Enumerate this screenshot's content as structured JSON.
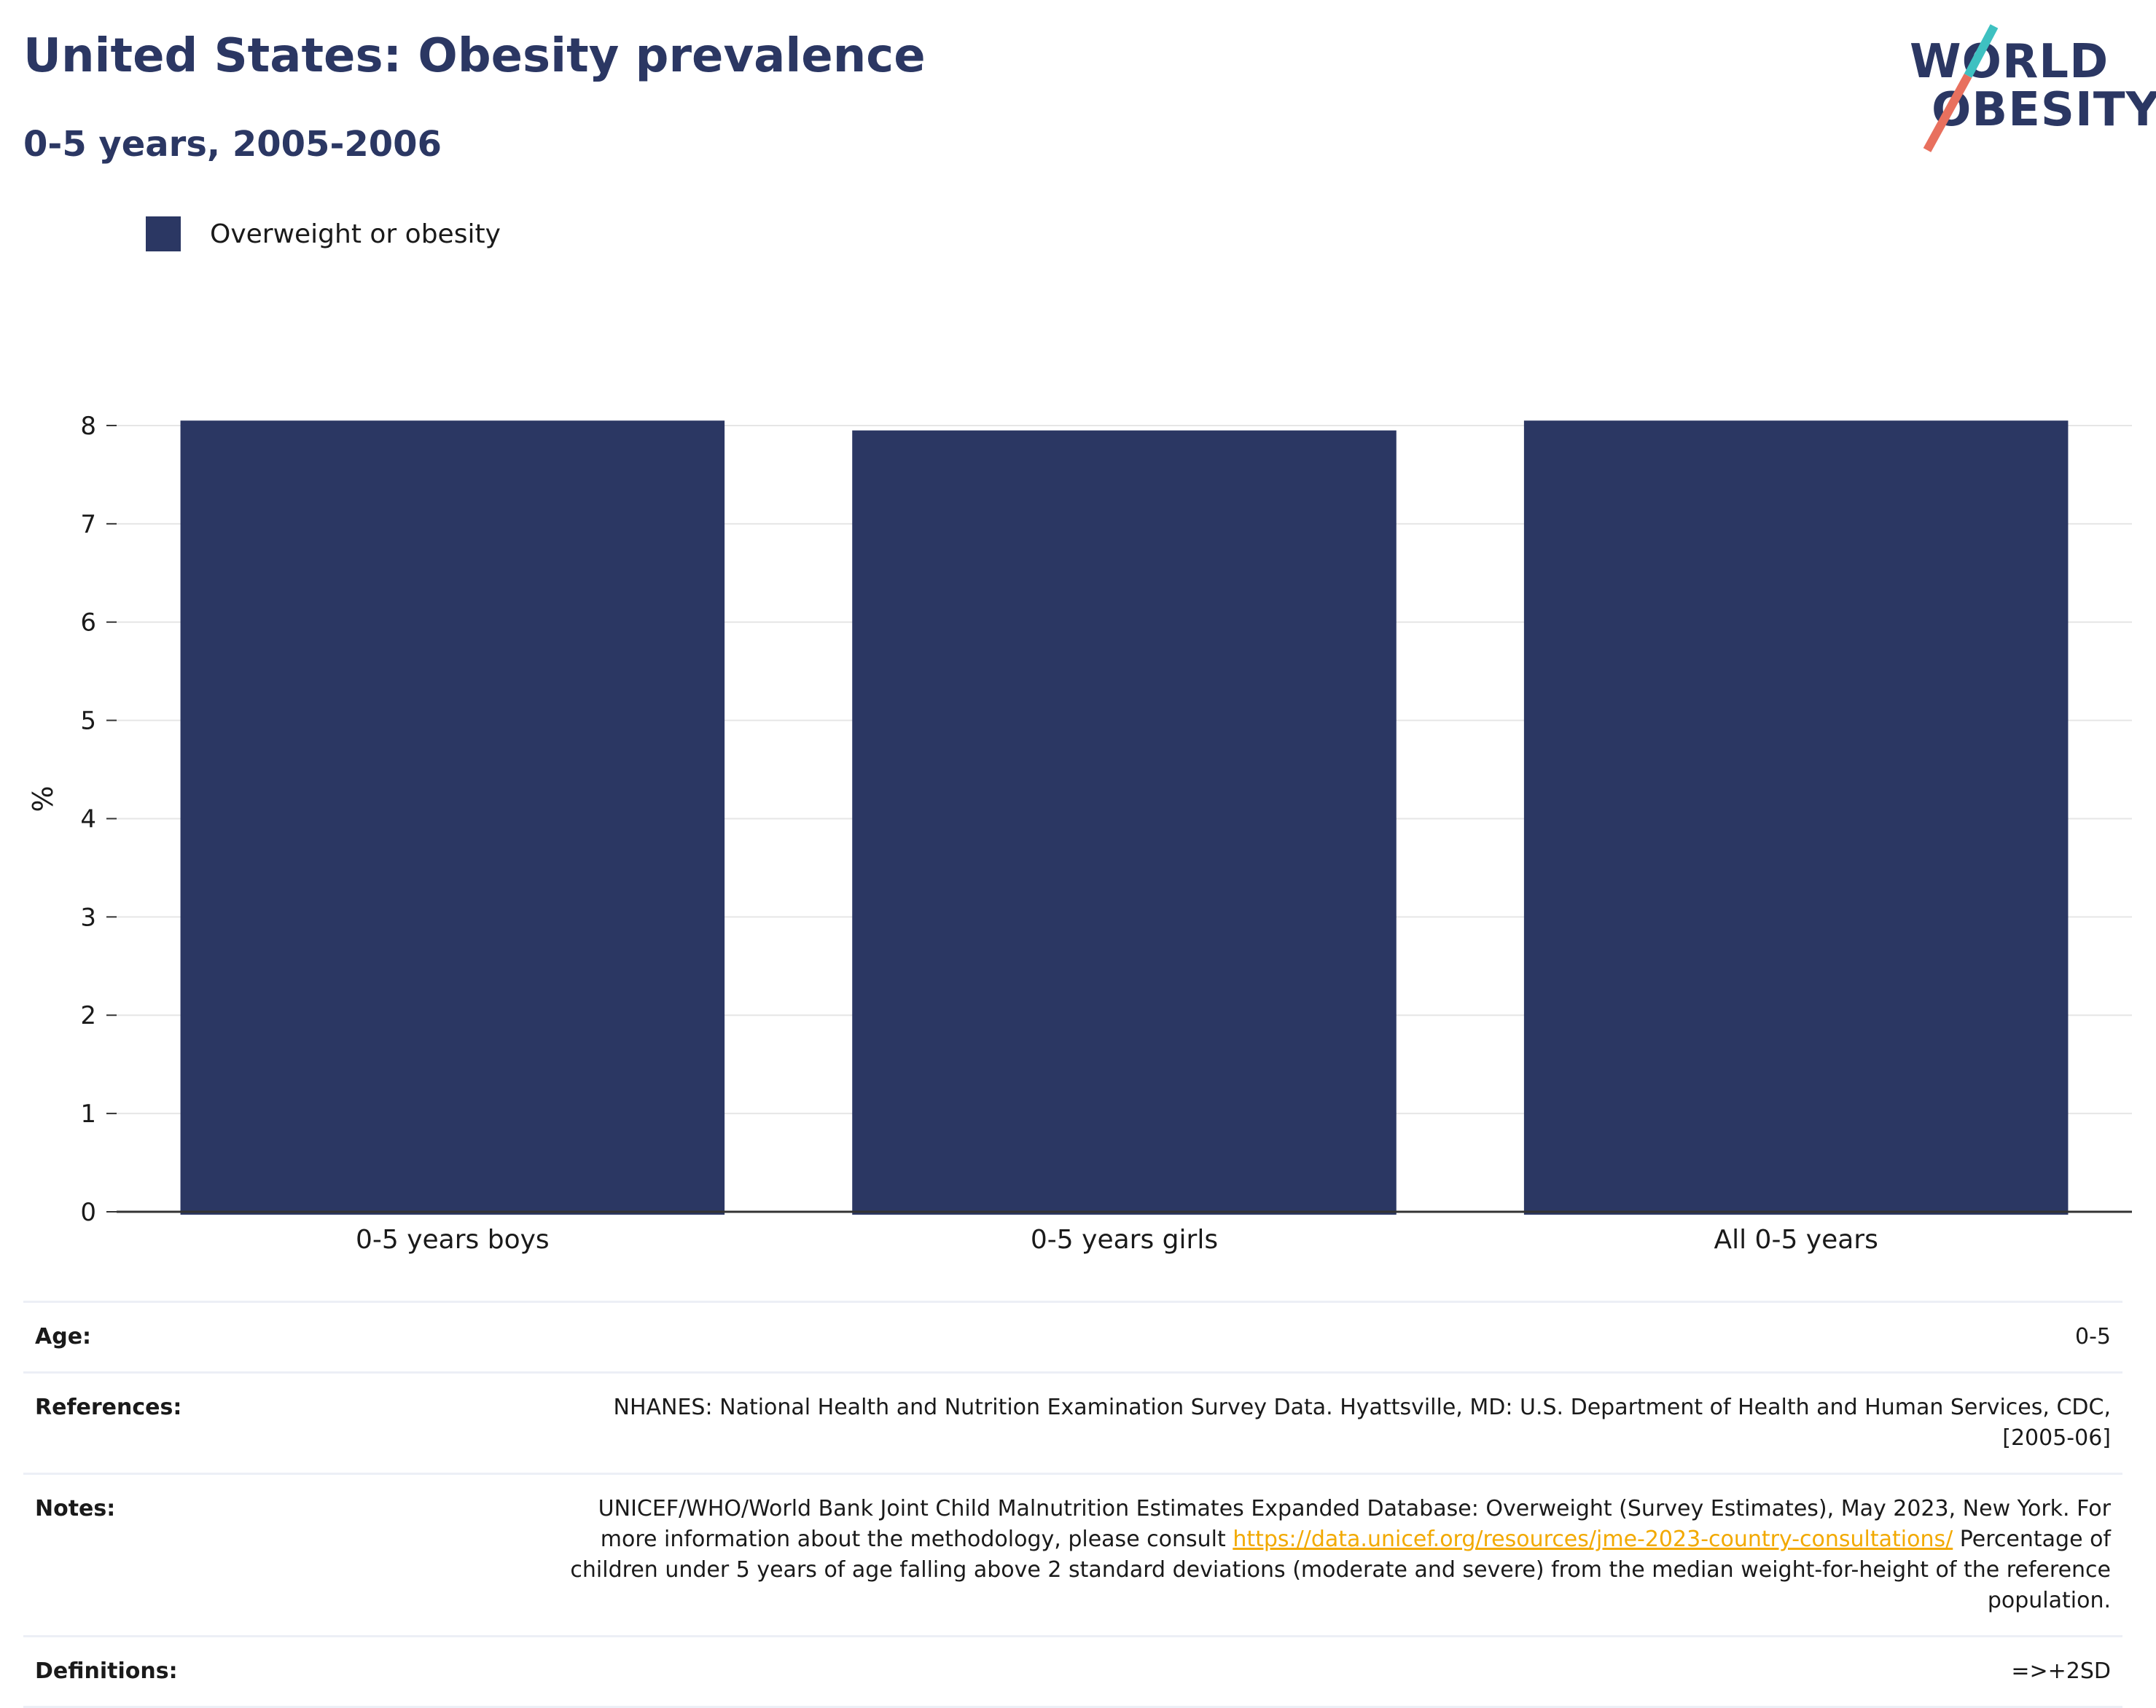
{
  "title": "United States: Obesity prevalence",
  "subtitle": "0-5 years, 2005-2006",
  "logo": {
    "line1": "WORLD",
    "line2": "OBESITY",
    "slash_colors": [
      "#3ec1c1",
      "#e8705e"
    ]
  },
  "colors": {
    "bar": "#2b3763",
    "title": "#2b3763",
    "grid": "#e6e6e6",
    "axis": "#333333",
    "link": "#f2a900"
  },
  "chart_data": {
    "type": "bar",
    "categories": [
      "0-5 years boys",
      "0-5 years girls",
      "All 0-5 years"
    ],
    "series": [
      {
        "name": "Overweight or obesity",
        "values": [
          8.05,
          7.95,
          8.05
        ]
      }
    ],
    "ylabel": "%",
    "xlabel": "",
    "ylim": [
      0,
      8.4
    ],
    "yticks": [
      0,
      1,
      2,
      3,
      4,
      5,
      6,
      7,
      8
    ],
    "grid": true,
    "legend_position": "top-left"
  },
  "meta": {
    "age": {
      "label": "Age:",
      "value": "0-5"
    },
    "references": {
      "label": "References:",
      "value": "NHANES: National Health and Nutrition Examination Survey Data. Hyattsville, MD: U.S. Department of Health and Human Services, CDC, [2005-06]"
    },
    "notes": {
      "label": "Notes:",
      "text_before": "UNICEF/WHO/World Bank Joint Child Malnutrition Estimates Expanded Database: Overweight (Survey Estimates), May 2023, New York. For more information about the methodology, please consult ",
      "link": "https://data.unicef.org/resources/jme-2023-country-consultations/",
      "text_after": " Percentage of children under 5 years of age falling above 2 standard deviations (moderate and severe) from the median weight-for-height of the reference population."
    },
    "definitions": {
      "label": "Definitions:",
      "value": "=>+2SD"
    }
  }
}
